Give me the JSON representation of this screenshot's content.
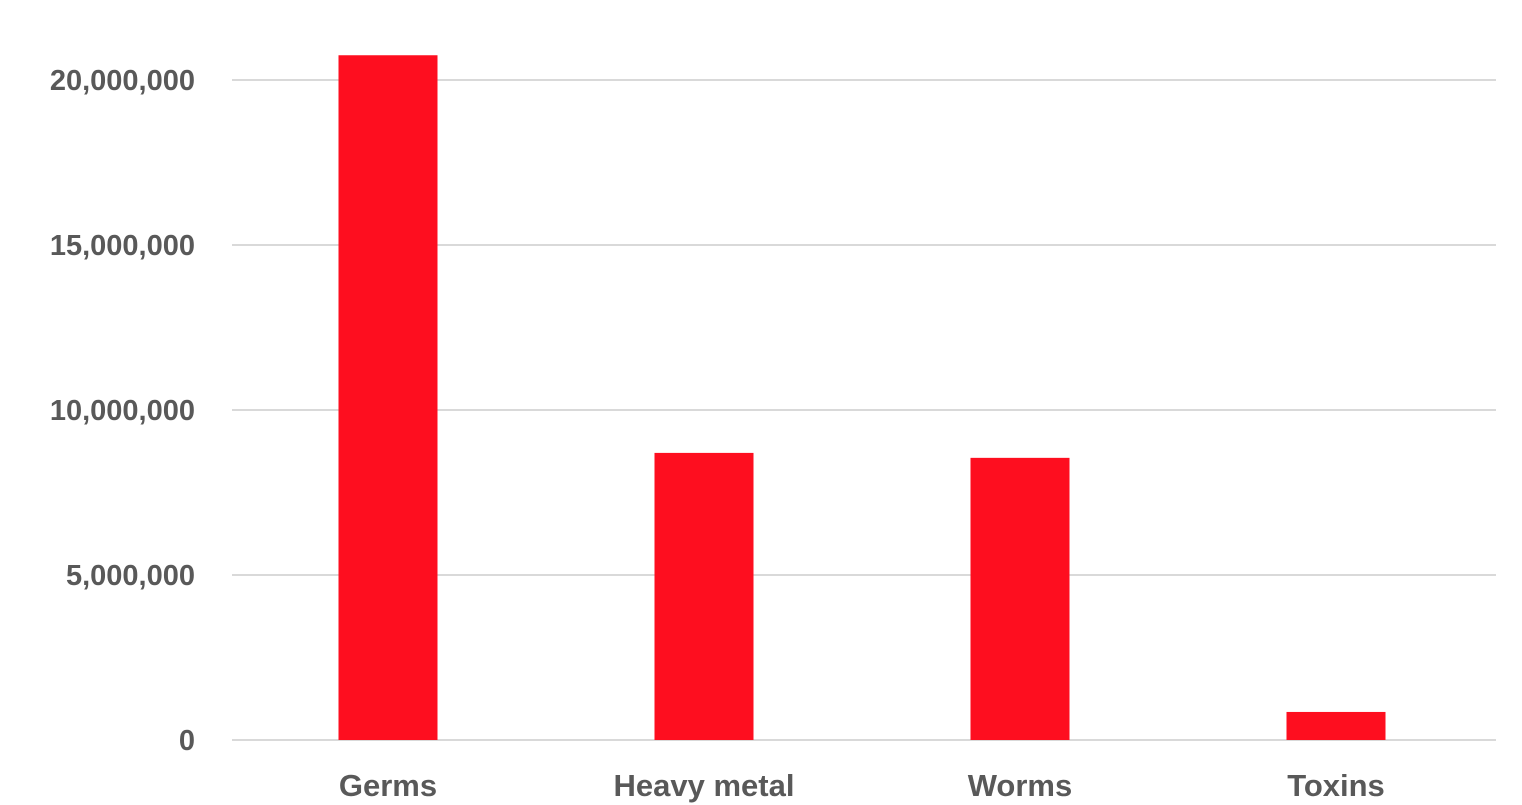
{
  "chart_data": {
    "type": "bar",
    "title": "",
    "xlabel": "",
    "ylabel": "",
    "categories": [
      "Germs",
      "Heavy metal",
      "Worms",
      "Toxins"
    ],
    "values": [
      20750000,
      8700000,
      8550000,
      850000
    ],
    "ylim": [
      0,
      20000000
    ],
    "yticks": [
      0,
      5000000,
      10000000,
      15000000,
      20000000
    ],
    "ytick_labels": [
      "0",
      "5,000,000",
      "10,000,000",
      "15,000,000",
      "20,000,000"
    ],
    "grid": true,
    "legend": "none",
    "bar_color": "#fe0e1f",
    "grid_color": "#d9d9d9",
    "label_color": "#595959"
  }
}
